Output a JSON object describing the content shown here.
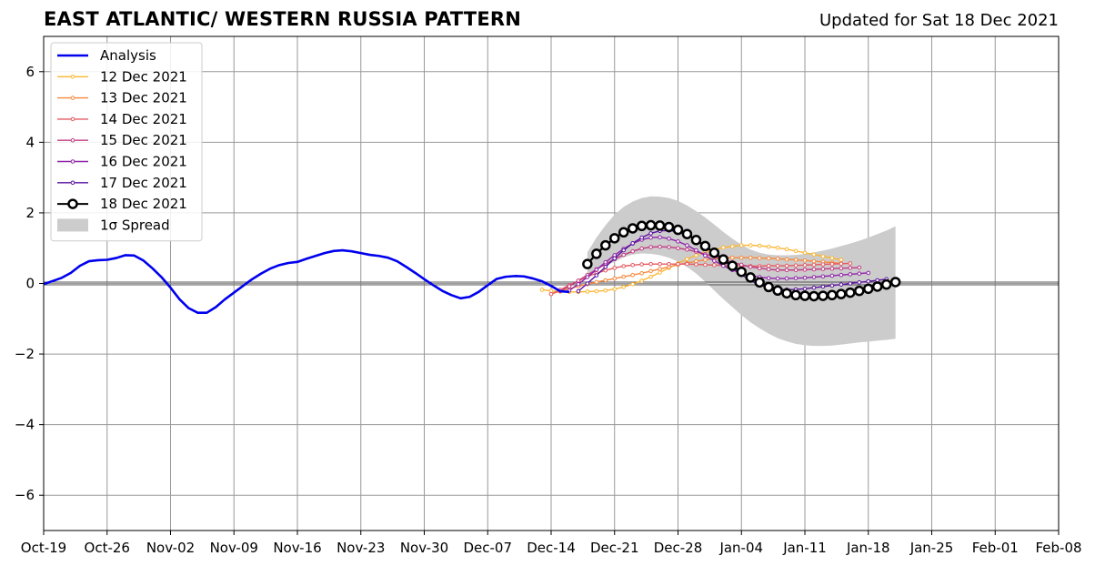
{
  "title": "EAST ATLANTIC/ WESTERN RUSSIA PATTERN",
  "subtitle": "Updated for Sat 18 Dec 2021",
  "chart_data": {
    "type": "line",
    "title": "EAST ATLANTIC/ WESTERN RUSSIA PATTERN",
    "subtitle": "Updated for Sat 18 Dec 2021",
    "xlabel": "",
    "ylabel": "",
    "x_axis": "date",
    "xlim": [
      "2021-10-19",
      "2022-02-08"
    ],
    "ylim": [
      -7,
      7
    ],
    "yticks": [
      -6,
      -4,
      -2,
      0,
      2,
      4,
      6
    ],
    "ytick_labels": [
      "−6",
      "−4",
      "−2",
      "0",
      "2",
      "4",
      "6"
    ],
    "xticks": [
      "2021-10-19",
      "2021-10-26",
      "2021-11-02",
      "2021-11-09",
      "2021-11-16",
      "2021-11-23",
      "2021-11-30",
      "2021-12-07",
      "2021-12-14",
      "2021-12-21",
      "2021-12-28",
      "2022-01-04",
      "2022-01-11",
      "2022-01-18",
      "2022-01-25",
      "2022-02-01",
      "2022-02-08"
    ],
    "xtick_labels": [
      "Oct-19",
      "Oct-26",
      "Nov-02",
      "Nov-09",
      "Nov-16",
      "Nov-23",
      "Nov-30",
      "Dec-07",
      "Dec-14",
      "Dec-21",
      "Dec-28",
      "Jan-04",
      "Jan-11",
      "Jan-18",
      "Jan-25",
      "Feb-01",
      "Feb-08"
    ],
    "grid": true,
    "legend_position": "upper-left",
    "analysis": {
      "name": "Analysis",
      "color": "#0000ee",
      "x_start": "2021-10-19",
      "y": [
        -0.02,
        0.07,
        0.16,
        0.3,
        0.5,
        0.63,
        0.66,
        0.67,
        0.72,
        0.8,
        0.79,
        0.65,
        0.43,
        0.18,
        -0.12,
        -0.45,
        -0.7,
        -0.83,
        -0.83,
        -0.67,
        -0.45,
        -0.26,
        -0.07,
        0.12,
        0.28,
        0.42,
        0.52,
        0.58,
        0.61,
        0.7,
        0.78,
        0.86,
        0.92,
        0.94,
        0.91,
        0.86,
        0.81,
        0.78,
        0.73,
        0.63,
        0.47,
        0.3,
        0.12,
        -0.05,
        -0.21,
        -0.33,
        -0.42,
        -0.38,
        -0.24,
        -0.05,
        0.13,
        0.19,
        0.21,
        0.2,
        0.14,
        0.06,
        -0.07,
        -0.22,
        -0.24
      ]
    },
    "forecasts": [
      {
        "name": "12 Dec 2021",
        "color": "#fbb735",
        "x_start": "2021-12-13",
        "y": [
          -0.18,
          -0.21,
          -0.23,
          -0.24,
          -0.24,
          -0.23,
          -0.22,
          -0.2,
          -0.16,
          -0.1,
          -0.02,
          0.08,
          0.19,
          0.31,
          0.44,
          0.57,
          0.69,
          0.8,
          0.89,
          0.96,
          1.02,
          1.05,
          1.08,
          1.08,
          1.07,
          1.04,
          1.01,
          0.97,
          0.92,
          0.87,
          0.82,
          0.77,
          0.72,
          0.67
        ]
      },
      {
        "name": "13 Dec 2021",
        "color": "#f6893d",
        "x_start": "2021-12-14",
        "y": [
          -0.3,
          -0.22,
          -0.15,
          -0.08,
          -0.02,
          0.04,
          0.09,
          0.14,
          0.19,
          0.24,
          0.29,
          0.35,
          0.41,
          0.47,
          0.53,
          0.58,
          0.63,
          0.67,
          0.7,
          0.72,
          0.73,
          0.73,
          0.73,
          0.72,
          0.71,
          0.7,
          0.68,
          0.67,
          0.65,
          0.63,
          0.61,
          0.59,
          0.57
        ]
      },
      {
        "name": "14 Dec 2021",
        "color": "#e45a61",
        "x_start": "2021-12-14",
        "y": [
          -0.3,
          -0.18,
          -0.05,
          0.07,
          0.19,
          0.29,
          0.37,
          0.44,
          0.49,
          0.52,
          0.54,
          0.55,
          0.55,
          0.55,
          0.55,
          0.55,
          0.54,
          0.53,
          0.52,
          0.51,
          0.5,
          0.5,
          0.49,
          0.49,
          0.5,
          0.5,
          0.5,
          0.51,
          0.52,
          0.53,
          0.54,
          0.55,
          0.56,
          0.57
        ]
      },
      {
        "name": "15 Dec 2021",
        "color": "#c13b82",
        "x_start": "2021-12-15",
        "y": [
          -0.22,
          -0.08,
          0.08,
          0.24,
          0.4,
          0.55,
          0.69,
          0.81,
          0.91,
          0.99,
          1.03,
          1.04,
          1.03,
          1.0,
          0.96,
          0.9,
          0.83,
          0.76,
          0.68,
          0.6,
          0.53,
          0.47,
          0.43,
          0.4,
          0.38,
          0.38,
          0.38,
          0.39,
          0.4,
          0.41,
          0.42,
          0.43,
          0.44,
          0.45
        ]
      },
      {
        "name": "16 Dec 2021",
        "color": "#8d23a7",
        "x_start": "2021-12-16",
        "y": [
          -0.2,
          -0.02,
          0.18,
          0.39,
          0.6,
          0.8,
          0.98,
          1.13,
          1.24,
          1.3,
          1.31,
          1.27,
          1.19,
          1.08,
          0.94,
          0.79,
          0.64,
          0.5,
          0.38,
          0.29,
          0.22,
          0.18,
          0.15,
          0.14,
          0.14,
          0.15,
          0.16,
          0.18,
          0.2,
          0.22,
          0.24,
          0.26,
          0.28,
          0.3
        ]
      },
      {
        "name": "17 Dec 2021",
        "color": "#5a12a0",
        "x_start": "2021-12-17",
        "y": [
          -0.22,
          0.0,
          0.23,
          0.47,
          0.71,
          0.94,
          1.14,
          1.3,
          1.42,
          1.49,
          1.5,
          1.46,
          1.37,
          1.24,
          1.07,
          0.87,
          0.66,
          0.45,
          0.25,
          0.08,
          -0.04,
          -0.12,
          -0.16,
          -0.18,
          -0.17,
          -0.15,
          -0.12,
          -0.09,
          -0.06,
          -0.03,
          0.0,
          0.03,
          0.06,
          0.09,
          0.12
        ]
      },
      {
        "name": "18 Dec 2021",
        "color": "#000000",
        "x_start": "2021-12-18",
        "y": [
          0.55,
          0.84,
          1.08,
          1.28,
          1.45,
          1.56,
          1.63,
          1.65,
          1.64,
          1.6,
          1.52,
          1.4,
          1.23,
          1.06,
          0.87,
          0.68,
          0.5,
          0.33,
          0.17,
          0.03,
          -0.1,
          -0.2,
          -0.28,
          -0.33,
          -0.35,
          -0.36,
          -0.35,
          -0.33,
          -0.3,
          -0.26,
          -0.21,
          -0.15,
          -0.09,
          -0.03,
          0.04
        ]
      }
    ],
    "spread": {
      "name": "1σ Spread",
      "color": "#cccccc",
      "x_start": "2021-12-18",
      "upper": [
        0.88,
        1.3,
        1.65,
        1.95,
        2.17,
        2.32,
        2.42,
        2.47,
        2.46,
        2.42,
        2.34,
        2.21,
        2.05,
        1.87,
        1.67,
        1.46,
        1.27,
        1.1,
        0.96,
        0.87,
        0.82,
        0.8,
        0.8,
        0.81,
        0.84,
        0.88,
        0.93,
        0.99,
        1.06,
        1.13,
        1.21,
        1.3,
        1.4,
        1.5,
        1.62
      ],
      "lower": [
        0.22,
        0.37,
        0.52,
        0.61,
        0.74,
        0.82,
        0.85,
        0.84,
        0.8,
        0.73,
        0.62,
        0.47,
        0.28,
        0.05,
        -0.2,
        -0.44,
        -0.67,
        -0.9,
        -1.1,
        -1.27,
        -1.42,
        -1.55,
        -1.64,
        -1.71,
        -1.75,
        -1.77,
        -1.77,
        -1.76,
        -1.73,
        -1.7,
        -1.67,
        -1.65,
        -1.62,
        -1.6,
        -1.57
      ]
    }
  }
}
